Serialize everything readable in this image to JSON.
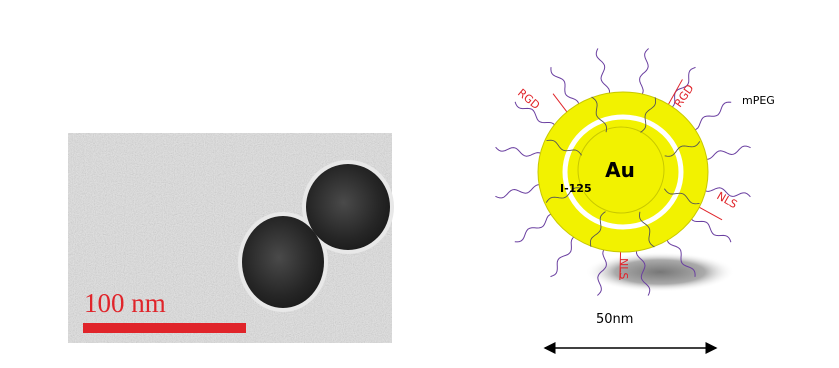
{
  "tem_image": {
    "scale_label": "100 nm"
  },
  "schematic": {
    "core_label": "Au",
    "labels": {
      "rgd_left": "RGD",
      "rgd_right": "RGD",
      "mpeg": "mPEG",
      "nls_right": "NLS",
      "nls_bottom": "NLS",
      "iodine": "I-125"
    },
    "size_label": "50nm"
  }
}
